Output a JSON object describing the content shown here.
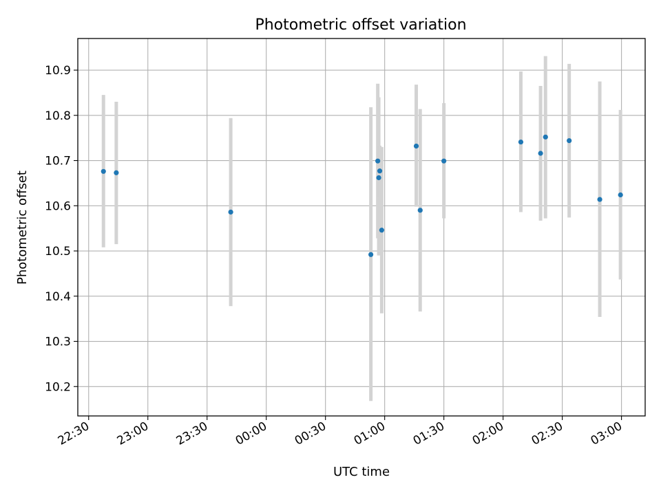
{
  "chart_data": {
    "type": "scatter",
    "title": "Photometric offset variation",
    "xlabel": "UTC time",
    "ylabel": "Photometric offset",
    "grid": true,
    "x_unit": "minutes since 22:30 UTC",
    "xlim": [
      -5.5,
      282
    ],
    "ylim": [
      10.135,
      10.97
    ],
    "xticks": [
      {
        "value": 0,
        "label": "22:30"
      },
      {
        "value": 30,
        "label": "23:00"
      },
      {
        "value": 60,
        "label": "23:30"
      },
      {
        "value": 90,
        "label": "00:00"
      },
      {
        "value": 120,
        "label": "00:30"
      },
      {
        "value": 150,
        "label": "01:00"
      },
      {
        "value": 180,
        "label": "01:30"
      },
      {
        "value": 210,
        "label": "02:00"
      },
      {
        "value": 240,
        "label": "02:30"
      },
      {
        "value": 270,
        "label": "03:00"
      }
    ],
    "yticks": [
      {
        "value": 10.2,
        "label": "10.2"
      },
      {
        "value": 10.3,
        "label": "10.3"
      },
      {
        "value": 10.4,
        "label": "10.4"
      },
      {
        "value": 10.5,
        "label": "10.5"
      },
      {
        "value": 10.6,
        "label": "10.6"
      },
      {
        "value": 10.7,
        "label": "10.7"
      },
      {
        "value": 10.8,
        "label": "10.8"
      },
      {
        "value": 10.9,
        "label": "10.9"
      }
    ],
    "series": [
      {
        "name": "offset",
        "marker_color": "#1f77b4",
        "errorbar_color": "#d3d3d3",
        "points": [
          {
            "x": 7.5,
            "y": 10.676,
            "lo": 10.508,
            "hi": 10.845
          },
          {
            "x": 14.0,
            "y": 10.673,
            "lo": 10.515,
            "hi": 10.83
          },
          {
            "x": 72.0,
            "y": 10.586,
            "lo": 10.378,
            "hi": 10.794
          },
          {
            "x": 143.0,
            "y": 10.492,
            "lo": 10.168,
            "hi": 10.818
          },
          {
            "x": 146.5,
            "y": 10.699,
            "lo": 10.528,
            "hi": 10.87
          },
          {
            "x": 147.0,
            "y": 10.662,
            "lo": 10.49,
            "hi": 10.84
          },
          {
            "x": 147.5,
            "y": 10.677,
            "lo": 10.62,
            "hi": 10.733
          },
          {
            "x": 148.5,
            "y": 10.546,
            "lo": 10.362,
            "hi": 10.73
          },
          {
            "x": 166.0,
            "y": 10.732,
            "lo": 10.598,
            "hi": 10.868
          },
          {
            "x": 168.0,
            "y": 10.59,
            "lo": 10.366,
            "hi": 10.814
          },
          {
            "x": 180.0,
            "y": 10.699,
            "lo": 10.572,
            "hi": 10.827
          },
          {
            "x": 219.0,
            "y": 10.741,
            "lo": 10.586,
            "hi": 10.897
          },
          {
            "x": 229.0,
            "y": 10.716,
            "lo": 10.567,
            "hi": 10.865
          },
          {
            "x": 231.5,
            "y": 10.752,
            "lo": 10.572,
            "hi": 10.931
          },
          {
            "x": 243.5,
            "y": 10.744,
            "lo": 10.574,
            "hi": 10.914
          },
          {
            "x": 259.0,
            "y": 10.614,
            "lo": 10.354,
            "hi": 10.875
          },
          {
            "x": 269.5,
            "y": 10.624,
            "lo": 10.437,
            "hi": 10.812
          }
        ]
      }
    ]
  }
}
